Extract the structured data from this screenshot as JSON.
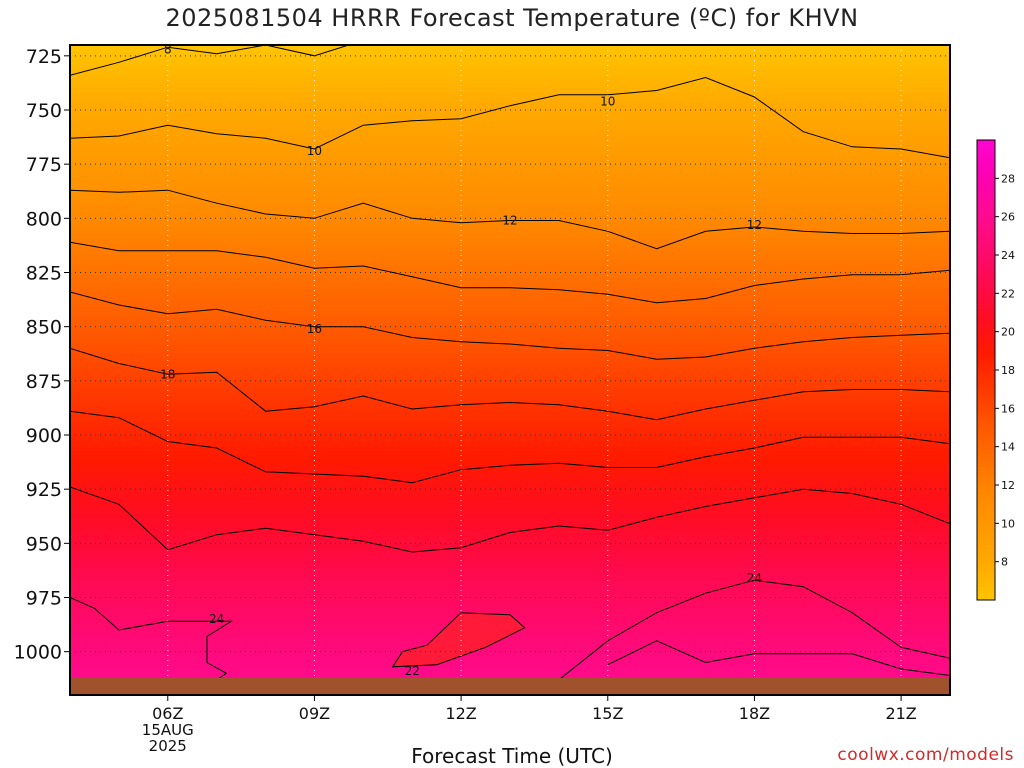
{
  "chart_data": {
    "type": "heatmap",
    "title": "2025081504 HRRR Forecast Temperature (ºC) for KHVN",
    "xlabel": "Forecast Time (UTC)",
    "ylabel": "",
    "credit": "coolwx.com/models",
    "x_ticks": [
      {
        "hour": 6,
        "label": "06Z",
        "sublabels": [
          "15AUG",
          "2025"
        ]
      },
      {
        "hour": 9,
        "label": "09Z",
        "sublabels": []
      },
      {
        "hour": 12,
        "label": "12Z",
        "sublabels": []
      },
      {
        "hour": 15,
        "label": "15Z",
        "sublabels": []
      },
      {
        "hour": 18,
        "label": "18Z",
        "sublabels": []
      },
      {
        "hour": 21,
        "label": "21Z",
        "sublabels": []
      }
    ],
    "xlim": [
      4,
      22
    ],
    "y_ticks": [
      725,
      750,
      775,
      800,
      825,
      850,
      875,
      900,
      925,
      950,
      975,
      1000
    ],
    "ylim": [
      720,
      1020
    ],
    "surface_pressure": 1013,
    "colorbar": {
      "ticks": [
        8,
        10,
        12,
        14,
        16,
        18,
        20,
        22,
        24,
        26,
        28
      ],
      "range": [
        6,
        30
      ],
      "colors": [
        "#ffc400",
        "#ffaa00",
        "#ff9900",
        "#ff8800",
        "#ff6e00",
        "#ff5500",
        "#ff3700",
        "#ff1a00",
        "#ff0c24",
        "#ff0a50",
        "#ff0a74",
        "#ff0a95",
        "#ff00b4",
        "#ff05d0"
      ]
    },
    "contour_labels": [
      {
        "value": 8,
        "hour": 6.0,
        "pressure": 722
      },
      {
        "value": 10,
        "hour": 15.0,
        "pressure": 746
      },
      {
        "value": 10,
        "hour": 9.0,
        "pressure": 769
      },
      {
        "value": 12,
        "hour": 13.0,
        "pressure": 801
      },
      {
        "value": 12,
        "hour": 18.0,
        "pressure": 803
      },
      {
        "value": 16,
        "hour": 9.0,
        "pressure": 851
      },
      {
        "value": 18,
        "hour": 6.0,
        "pressure": 872
      },
      {
        "value": 24,
        "hour": 18.0,
        "pressure": 966
      },
      {
        "value": 24,
        "hour": 7.0,
        "pressure": 985
      },
      {
        "value": 22,
        "hour": 11.0,
        "pressure": 1009
      }
    ],
    "contours": [
      {
        "value": 8,
        "points": [
          [
            4,
            734
          ],
          [
            5,
            728
          ],
          [
            6,
            721
          ],
          [
            7,
            724
          ],
          [
            8,
            720
          ],
          [
            9,
            725
          ],
          [
            9.7,
            720
          ]
        ]
      },
      {
        "value": 10,
        "points": [
          [
            4,
            763
          ],
          [
            5,
            762
          ],
          [
            6,
            757
          ],
          [
            7,
            761
          ],
          [
            8,
            763
          ],
          [
            9,
            768
          ],
          [
            10,
            757
          ],
          [
            11,
            755
          ],
          [
            12,
            754
          ],
          [
            13,
            748
          ],
          [
            14,
            743
          ],
          [
            15,
            743
          ],
          [
            16,
            741
          ],
          [
            17,
            735
          ],
          [
            18,
            744
          ],
          [
            19,
            760
          ],
          [
            20,
            767
          ],
          [
            21,
            768
          ],
          [
            22,
            772
          ]
        ]
      },
      {
        "value": 12,
        "points": [
          [
            4,
            787
          ],
          [
            5,
            788
          ],
          [
            6,
            787
          ],
          [
            7,
            793
          ],
          [
            8,
            798
          ],
          [
            9,
            800
          ],
          [
            10,
            793
          ],
          [
            11,
            800
          ],
          [
            12,
            802
          ],
          [
            13,
            801
          ],
          [
            14,
            801
          ],
          [
            15,
            806
          ],
          [
            16,
            814
          ],
          [
            17,
            806
          ],
          [
            18,
            804
          ],
          [
            19,
            806
          ],
          [
            20,
            807
          ],
          [
            21,
            807
          ],
          [
            22,
            806
          ]
        ]
      },
      {
        "value": 14,
        "points": [
          [
            4,
            811
          ],
          [
            5,
            815
          ],
          [
            6,
            815
          ],
          [
            7,
            815
          ],
          [
            8,
            818
          ],
          [
            9,
            823
          ],
          [
            10,
            822
          ],
          [
            11,
            827
          ],
          [
            12,
            832
          ],
          [
            13,
            832
          ],
          [
            14,
            833
          ],
          [
            15,
            835
          ],
          [
            16,
            839
          ],
          [
            17,
            837
          ],
          [
            18,
            831
          ],
          [
            19,
            828
          ],
          [
            20,
            826
          ],
          [
            21,
            826
          ],
          [
            22,
            824
          ]
        ]
      },
      {
        "value": 16,
        "points": [
          [
            4,
            834
          ],
          [
            5,
            840
          ],
          [
            6,
            844
          ],
          [
            7,
            842
          ],
          [
            8,
            847
          ],
          [
            9,
            850
          ],
          [
            10,
            850
          ],
          [
            11,
            855
          ],
          [
            12,
            857
          ],
          [
            13,
            858
          ],
          [
            14,
            860
          ],
          [
            15,
            861
          ],
          [
            16,
            865
          ],
          [
            17,
            864
          ],
          [
            18,
            860
          ],
          [
            19,
            857
          ],
          [
            20,
            855
          ],
          [
            21,
            854
          ],
          [
            22,
            853
          ]
        ]
      },
      {
        "value": 18,
        "points": [
          [
            4,
            860
          ],
          [
            5,
            867
          ],
          [
            6,
            872
          ],
          [
            7,
            871
          ],
          [
            8,
            889
          ],
          [
            9,
            887
          ],
          [
            10,
            882
          ],
          [
            11,
            888
          ],
          [
            12,
            886
          ],
          [
            13,
            885
          ],
          [
            14,
            886
          ],
          [
            15,
            889
          ],
          [
            16,
            893
          ],
          [
            17,
            888
          ],
          [
            18,
            884
          ],
          [
            19,
            880
          ],
          [
            20,
            879
          ],
          [
            21,
            879
          ],
          [
            22,
            880
          ]
        ]
      },
      {
        "value": 20,
        "points": [
          [
            4,
            889
          ],
          [
            5,
            892
          ],
          [
            6,
            903
          ],
          [
            7,
            906
          ],
          [
            8,
            917
          ],
          [
            9,
            918
          ],
          [
            10,
            919
          ],
          [
            11,
            922
          ],
          [
            12,
            916
          ],
          [
            13,
            914
          ],
          [
            14,
            913
          ],
          [
            15,
            915
          ],
          [
            16,
            915
          ],
          [
            17,
            910
          ],
          [
            18,
            906
          ],
          [
            19,
            901
          ],
          [
            20,
            901
          ],
          [
            21,
            901
          ],
          [
            22,
            904
          ]
        ]
      },
      {
        "value": 22,
        "points": [
          [
            4,
            924
          ],
          [
            5,
            932
          ],
          [
            6,
            953
          ],
          [
            7,
            946
          ],
          [
            8,
            943
          ],
          [
            9,
            946
          ],
          [
            10,
            949
          ],
          [
            11,
            954
          ],
          [
            12,
            952
          ],
          [
            13,
            945
          ],
          [
            14,
            942
          ],
          [
            15,
            944
          ],
          [
            16,
            938
          ],
          [
            17,
            933
          ],
          [
            18,
            929
          ],
          [
            19,
            925
          ],
          [
            20,
            927
          ],
          [
            21,
            932
          ],
          [
            22,
            941
          ]
        ]
      },
      {
        "value": 24,
        "points": [
          [
            14,
            1013
          ],
          [
            15,
            995
          ],
          [
            16,
            982
          ],
          [
            17,
            973
          ],
          [
            18,
            967
          ],
          [
            19,
            970
          ],
          [
            20,
            982
          ],
          [
            21,
            998
          ],
          [
            22,
            1003
          ]
        ]
      },
      {
        "value": 24,
        "points": [
          [
            4,
            975
          ],
          [
            4.5,
            980
          ],
          [
            5,
            990
          ],
          [
            6,
            986
          ],
          [
            6.8,
            986
          ],
          [
            7.3,
            986
          ],
          [
            6.8,
            993
          ],
          [
            6.8,
            1005
          ],
          [
            7.2,
            1010
          ],
          [
            7,
            1013
          ]
        ]
      },
      {
        "value": 26,
        "points": [
          [
            15,
            1006
          ],
          [
            16,
            995
          ],
          [
            17,
            1005
          ],
          [
            18,
            1001
          ],
          [
            19,
            1001
          ],
          [
            20,
            1001
          ],
          [
            21,
            1008
          ],
          [
            22,
            1011
          ]
        ]
      }
    ],
    "warm_pocket": {
      "value": 22,
      "points": [
        [
          10.6,
          1007
        ],
        [
          10.8,
          1000
        ],
        [
          11.3,
          997
        ],
        [
          12,
          982
        ],
        [
          13,
          983
        ],
        [
          13.3,
          989
        ],
        [
          12.5,
          998
        ],
        [
          11.5,
          1006
        ],
        [
          10.6,
          1007
        ]
      ]
    }
  }
}
